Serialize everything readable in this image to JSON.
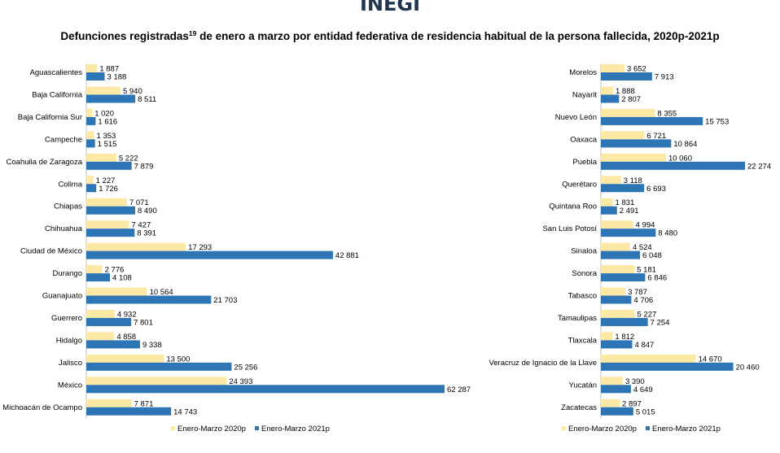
{
  "header": {
    "logo": "INEGI",
    "title_main": "Defunciones registradas",
    "title_sup": "19",
    "title_rest": " de enero a marzo por entidad federativa de residencia habitual de la persona fallecida, 2020p-2021p"
  },
  "colors": {
    "series_2020": "#fde9a6",
    "series_2021": "#2e75b6"
  },
  "chart_data": [
    {
      "type": "bar",
      "orientation": "horizontal",
      "categories": [
        "Aguascalientes",
        "Baja California",
        "Baja California Sur",
        "Campeche",
        "Coahuila de Zaragoza",
        "Colima",
        "Chiapas",
        "Chihuahua",
        "Ciudad de México",
        "Durango",
        "Guanajuato",
        "Guerrero",
        "Hidalgo",
        "Jalisco",
        "México",
        "Michoacán de Ocampo"
      ],
      "series": [
        {
          "name": "Enero-Marzo 2020p",
          "values": [
            1887,
            5940,
            1020,
            1353,
            5222,
            1227,
            7071,
            7427,
            17293,
            2776,
            10564,
            4932,
            4858,
            13500,
            24393,
            7871
          ],
          "labels": [
            "1 887",
            "5 940",
            "1 020",
            "1 353",
            "5 222",
            "1 227",
            "7 071",
            "7 427",
            "17 293",
            "2 776",
            "10 564",
            "4 932",
            "4 858",
            "13 500",
            "24 393",
            "7 871"
          ]
        },
        {
          "name": "Enero-Marzo 2021p",
          "values": [
            3188,
            8511,
            1616,
            1515,
            7879,
            1726,
            8490,
            8391,
            42881,
            4108,
            21703,
            7801,
            9338,
            25256,
            62287,
            14743
          ],
          "labels": [
            "3 188",
            "8 511",
            "1 616",
            "1 515",
            "7 879",
            "1 726",
            "8 490",
            "8 391",
            "42 881",
            "4 108",
            "21 703",
            "7 801",
            "9 338",
            "25 256",
            "62 287",
            "14 743"
          ]
        }
      ],
      "legend_position": "bottom"
    },
    {
      "type": "bar",
      "orientation": "horizontal",
      "categories": [
        "Morelos",
        "Nayarit",
        "Nuevo León",
        "Oaxaca",
        "Puebla",
        "Querétaro",
        "Quintana Roo",
        "San Luis Potosí",
        "Sinaloa",
        "Sonora",
        "Tabasco",
        "Tamaulipas",
        "Tlaxcala",
        "Veracruz de Ignacio de la Llave",
        "Yucatán",
        "Zacatecas"
      ],
      "series": [
        {
          "name": "Enero-Marzo 2020p",
          "values": [
            3652,
            1888,
            8355,
            6721,
            10060,
            3118,
            1831,
            4994,
            4524,
            5181,
            3787,
            5227,
            1812,
            14670,
            3390,
            2897
          ],
          "labels": [
            "3 652",
            "1 888",
            "8 355",
            "6 721",
            "10 060",
            "3 118",
            "1 831",
            "4 994",
            "4 524",
            "5 181",
            "3 787",
            "5 227",
            "1 812",
            "14 670",
            "3 390",
            "2 897"
          ]
        },
        {
          "name": "Enero-Marzo 2021p",
          "values": [
            7913,
            2807,
            15753,
            10864,
            22274,
            6693,
            2491,
            8480,
            6048,
            6846,
            4706,
            7254,
            4847,
            20460,
            4649,
            5015
          ],
          "labels": [
            "7 913",
            "2 807",
            "15 753",
            "10 864",
            "22 274",
            "6 693",
            "2 491",
            "8 480",
            "6 048",
            "6 846",
            "4 706",
            "7 254",
            "4 847",
            "20 460",
            "4 649",
            "5 015"
          ]
        }
      ],
      "legend_position": "bottom"
    }
  ]
}
